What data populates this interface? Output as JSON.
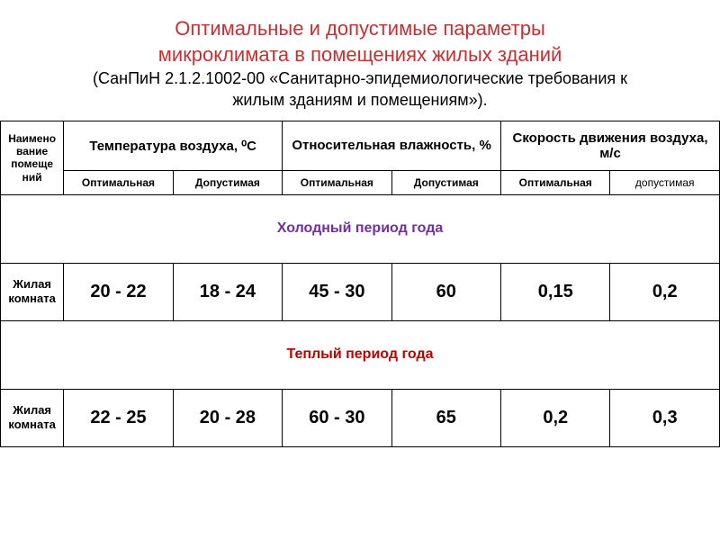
{
  "title": {
    "main_line1": "Оптимальные и допустимые параметры",
    "main_line2": "микроклимата в помещениях жилых зданий",
    "sub_line1": "(СанПиН 2.1.2.1002-00 «Санитарно-эпидемиологические требования к",
    "sub_line2": "жилым зданиям и помещениям»)."
  },
  "headers": {
    "room": "Наимено вание помеще ний",
    "temp": "Температура воздуха, ⁰С",
    "humidity": "Относительная влажность, %",
    "speed": "Скорость движения воздуха, м/с",
    "optimal": "Оптимальная",
    "allowed": "Допустимая",
    "allowed_lower": "допустимая"
  },
  "sections": {
    "cold": "Холодный период года",
    "warm": "Теплый период года"
  },
  "room_label": "Жилая комната",
  "rows": {
    "cold": {
      "temp_opt": "20 - 22",
      "temp_all": "18 - 24",
      "hum_opt": "45 - 30",
      "hum_all": "60",
      "spd_opt": "0,15",
      "spd_all": "0,2"
    },
    "warm": {
      "temp_opt": "22 - 25",
      "temp_all": "20 - 28",
      "hum_opt": "60 - 30",
      "hum_all": "65",
      "spd_opt": "0,2",
      "spd_all": "0,3"
    }
  },
  "styling": {
    "title_color": "#c73030",
    "section_cold_color": "#7030a0",
    "section_warm_color": "#c00000",
    "border_color": "#000000",
    "background": "#ffffff",
    "title_fontsize": 22,
    "subtitle_fontsize": 18,
    "header_group_fontsize": 15,
    "header_sub_fontsize": 12,
    "section_fontsize": 16,
    "value_fontsize": 20,
    "room_col_width": 70,
    "val_col_width": 121
  }
}
